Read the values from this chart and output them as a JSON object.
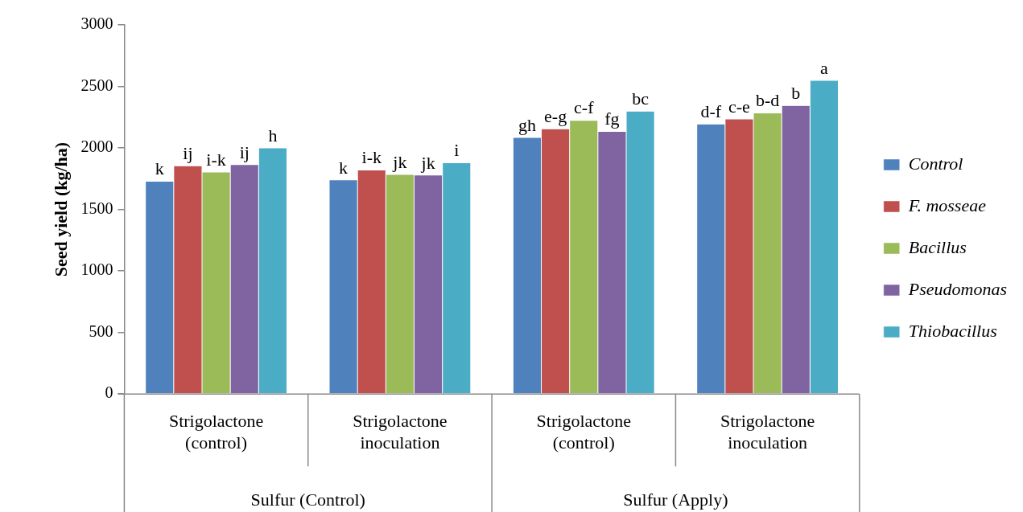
{
  "chart_data": {
    "type": "bar",
    "ylabel": "Seed yield (kg/ha)",
    "categories": [
      "Strigolactone (control)",
      "Strigolactone inoculation",
      "Strigolactone (control)",
      "Strigolactone inoculation"
    ],
    "annotations": [
      "Sulfur (Control)",
      "Sulfur (Apply)"
    ],
    "series": [
      {
        "name": "Control",
        "color": "#4f81bd",
        "values": [
          1730,
          1740,
          2085,
          2195
        ],
        "value_labels": [
          "k",
          "k",
          "gh",
          "d-f"
        ]
      },
      {
        "name": "F. mosseae",
        "color": "#c0504d",
        "values": [
          1855,
          1820,
          2155,
          2235
        ],
        "value_labels": [
          "ij",
          "i-k",
          "e-g",
          "c-e"
        ]
      },
      {
        "name": "Bacillus",
        "color": "#9bbb59",
        "values": [
          1805,
          1785,
          2225,
          2285
        ],
        "value_labels": [
          "i-k",
          "jk",
          "c-f",
          "b-d"
        ]
      },
      {
        "name": "Pseudomonas",
        "color": "#8064a2",
        "values": [
          1865,
          1780,
          2135,
          2345
        ],
        "value_labels": [
          "ij",
          "jk",
          "fg",
          "b"
        ]
      },
      {
        "name": "Thiobacillus",
        "color": "#4bacc6",
        "values": [
          2000,
          1880,
          2300,
          2550
        ],
        "value_labels": [
          "h",
          "i",
          "bc",
          "a"
        ]
      }
    ],
    "ylim": [
      0,
      3000
    ],
    "yticks": [
      0,
      500,
      1000,
      1500,
      2000,
      2500,
      3000
    ],
    "grid": false,
    "legend": "right"
  }
}
